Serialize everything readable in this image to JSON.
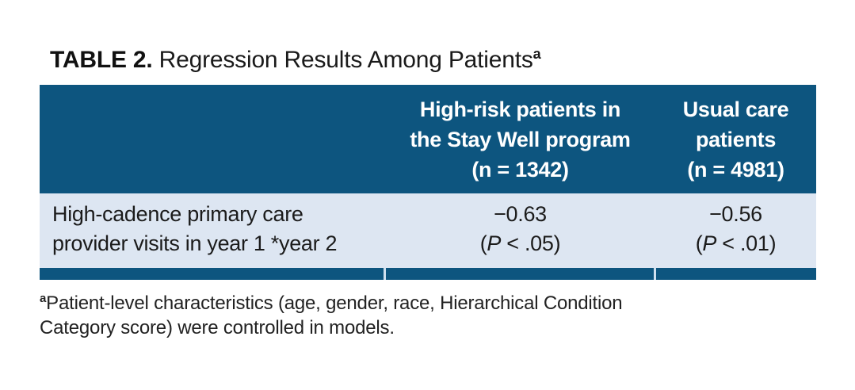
{
  "title": {
    "label_bold": "TABLE 2.",
    "label_rest": " Regression Results Among Patients",
    "superscript": "a"
  },
  "table": {
    "colors": {
      "header_bg": "#0d557f",
      "header_text": "#ffffff",
      "body_bg": "#dde6f2",
      "body_text": "#1b1b1b",
      "bottom_bar_bg": "#0d557f",
      "bar_gap": "#cfe0ef"
    },
    "columns": [
      {
        "id": "row-label",
        "header_lines": [
          "",
          "",
          ""
        ]
      },
      {
        "id": "stay-well",
        "header_lines": [
          "High-risk patients in",
          "the Stay Well program",
          "(n = 1342)"
        ]
      },
      {
        "id": "usual-care",
        "header_lines": [
          "Usual care",
          "patients",
          "(n = 4981)"
        ]
      }
    ],
    "rows": [
      {
        "label_lines": [
          "High-cadence primary care",
          "provider visits in year 1 *year 2"
        ],
        "cells": [
          {
            "estimate": "−0.63",
            "p_open": "(",
            "p_symbol": "P",
            "p_rest": " < .05)"
          },
          {
            "estimate": "−0.56",
            "p_open": "(",
            "p_symbol": "P",
            "p_rest": " < .01)"
          }
        ]
      }
    ]
  },
  "footnote": {
    "superscript": "a",
    "line1": "Patient-level characteristics (age, gender, race, Hierarchical Condition",
    "line2": "Category score) were controlled in models."
  }
}
